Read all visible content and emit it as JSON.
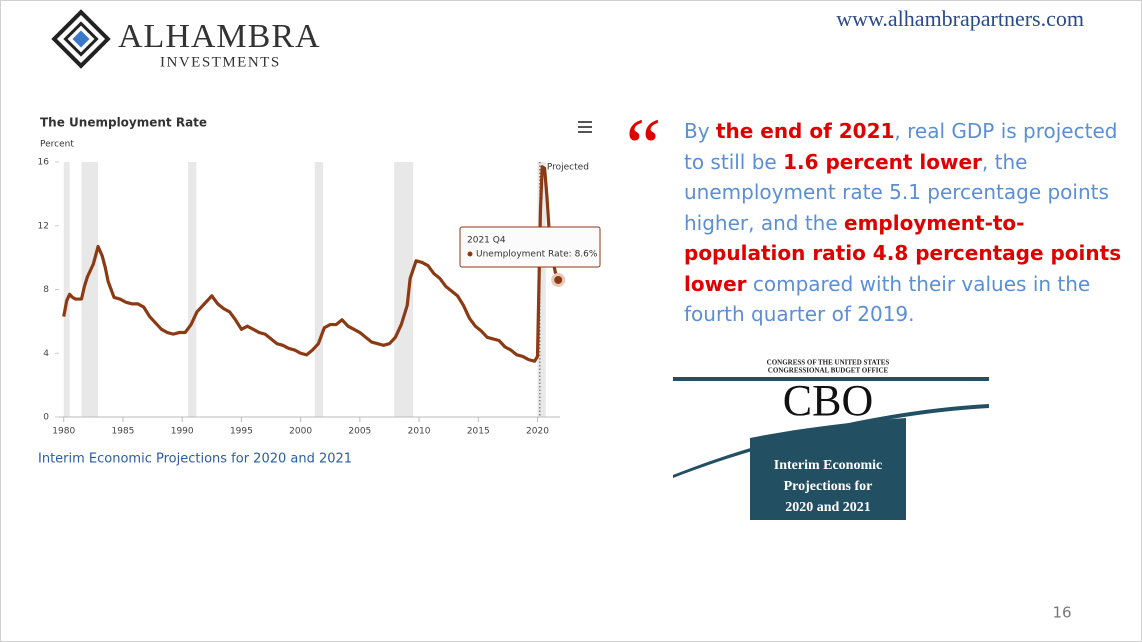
{
  "logo": {
    "name": "ALHAMBRA",
    "subtitle": "INVESTMENTS"
  },
  "url": "www.alhambrapartners.com",
  "chart_data": {
    "type": "line",
    "title": "The Unemployment Rate",
    "y_label": "Percent",
    "annotation": "Projected",
    "projection_start": 2020.2,
    "x": [
      1980.0,
      1980.25,
      1980.5,
      1980.75,
      1981.0,
      1981.5,
      1981.75,
      1982.0,
      1982.5,
      1982.9,
      1983.25,
      1983.5,
      1983.75,
      1984.25,
      1984.75,
      1985.25,
      1985.75,
      1986.25,
      1986.75,
      1987.25,
      1987.75,
      1988.25,
      1988.75,
      1989.25,
      1989.75,
      1990.25,
      1990.75,
      1991.25,
      1991.75,
      1992.5,
      1993.0,
      1993.5,
      1994.0,
      1994.5,
      1995.0,
      1995.5,
      1996.0,
      1996.5,
      1997.0,
      1997.5,
      1998.0,
      1998.5,
      1999.0,
      1999.5,
      2000.0,
      2000.5,
      2001.0,
      2001.5,
      2002.0,
      2002.5,
      2003.0,
      2003.5,
      2004.0,
      2004.5,
      2005.0,
      2005.5,
      2006.0,
      2006.5,
      2007.0,
      2007.5,
      2008.0,
      2008.5,
      2009.0,
      2009.25,
      2009.75,
      2010.25,
      2010.75,
      2011.25,
      2011.75,
      2012.25,
      2012.75,
      2013.25,
      2013.75,
      2014.25,
      2014.75,
      2015.25,
      2015.75,
      2016.25,
      2016.75,
      2017.25,
      2017.75,
      2018.25,
      2018.75,
      2019.25,
      2019.75,
      2020.0,
      2020.25,
      2020.4,
      2020.6,
      2020.8,
      2021.0,
      2021.25,
      2021.5,
      2021.75
    ],
    "series": [
      {
        "name": "Unemployment Rate",
        "color": "#8b3a14",
        "values": [
          6.3,
          7.3,
          7.7,
          7.5,
          7.4,
          7.4,
          8.2,
          8.8,
          9.6,
          10.7,
          10.1,
          9.4,
          8.5,
          7.5,
          7.4,
          7.2,
          7.1,
          7.1,
          6.9,
          6.3,
          5.9,
          5.5,
          5.3,
          5.2,
          5.3,
          5.3,
          5.8,
          6.6,
          7.0,
          7.6,
          7.1,
          6.8,
          6.6,
          6.1,
          5.5,
          5.7,
          5.5,
          5.3,
          5.2,
          4.9,
          4.6,
          4.5,
          4.3,
          4.2,
          4.0,
          3.9,
          4.2,
          4.6,
          5.6,
          5.8,
          5.8,
          6.1,
          5.7,
          5.5,
          5.3,
          5.0,
          4.7,
          4.6,
          4.5,
          4.6,
          5.0,
          5.8,
          7.0,
          8.7,
          9.8,
          9.7,
          9.5,
          9.0,
          8.7,
          8.2,
          7.9,
          7.6,
          7.0,
          6.2,
          5.7,
          5.4,
          5.0,
          4.9,
          4.8,
          4.4,
          4.2,
          3.9,
          3.8,
          3.6,
          3.5,
          3.8,
          13.0,
          15.7,
          15.6,
          13.8,
          11.5,
          10.0,
          9.1,
          8.6
        ]
      }
    ],
    "recessions": [
      [
        1980.0,
        1980.5
      ],
      [
        1981.5,
        1982.9
      ],
      [
        1990.5,
        1991.2
      ],
      [
        2001.2,
        2001.9
      ],
      [
        2007.9,
        2009.5
      ],
      [
        2020.0,
        2020.7
      ]
    ],
    "recession_color": "#e8e8e8",
    "xlim": [
      1979.6,
      2021.9
    ],
    "ylim": [
      0,
      16
    ],
    "xticks": [
      1980,
      1985,
      1990,
      1995,
      2000,
      2005,
      2010,
      2015,
      2020
    ],
    "yticks": [
      0,
      4,
      8,
      12,
      16
    ],
    "tooltip": {
      "title": "2021 Q4",
      "text": "Unemployment Rate: 8.6%"
    }
  },
  "caption": "Interim Economic Projections for 2020 and 2021",
  "quote": {
    "mark": "“",
    "segments": [
      {
        "text": "By ",
        "emphasis": false
      },
      {
        "text": "the end of 2021",
        "emphasis": true
      },
      {
        "text": ", real GDP is projected to still be ",
        "emphasis": false
      },
      {
        "text": "1.6 percent lower",
        "emphasis": true
      },
      {
        "text": ", the unemployment rate 5.1 percentage points higher, and the ",
        "emphasis": false
      },
      {
        "text": "employment-to-population ratio 4.8 percentage points lower",
        "emphasis": true
      },
      {
        "text": " compared with their values in the fourth quarter of 2019.",
        "emphasis": false
      }
    ]
  },
  "cbo": {
    "header": [
      "CONGRESS OF THE UNITED STATES",
      "CONGRESSIONAL BUDGET OFFICE"
    ],
    "name": "CBO",
    "title_lines": [
      "Interim Economic",
      "Projections for",
      "2020 and 2021"
    ]
  },
  "page_number": "16"
}
